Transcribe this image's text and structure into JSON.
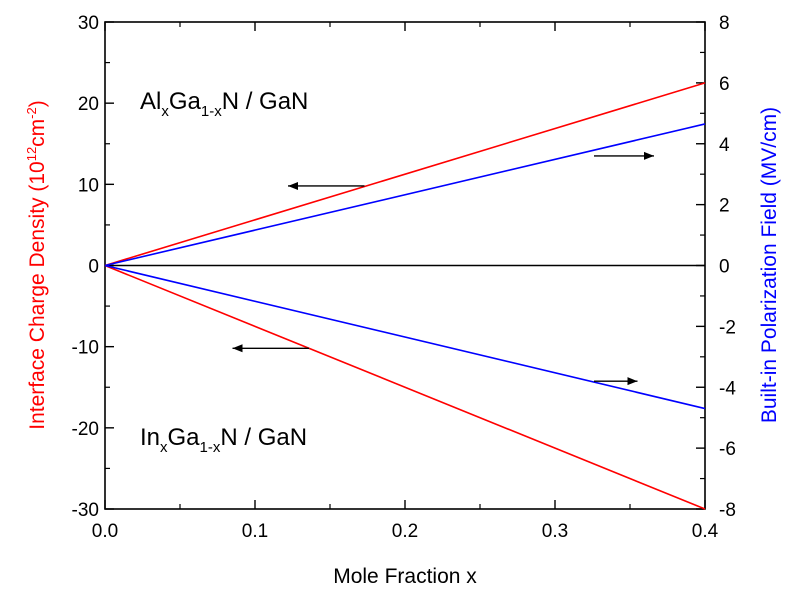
{
  "chart_data": {
    "type": "line",
    "xlabel": "Mole Fraction x",
    "ylabel_left": {
      "main": "Interface Charge Density (10",
      "sup1": "12",
      "mid": "cm",
      "sup2": "-2",
      "end": ")"
    },
    "ylabel_right": "Built-in Polarization Field (MV/cm)",
    "xlim": [
      0.0,
      0.4
    ],
    "ylim_left": [
      -30,
      30
    ],
    "ylim_right": [
      -8,
      8
    ],
    "x_ticks": [
      "0.0",
      "0.1",
      "0.2",
      "0.3",
      "0.4"
    ],
    "y_left_ticks": [
      "30",
      "20",
      "10",
      "0",
      "-10",
      "-20",
      "-30"
    ],
    "y_right_ticks": [
      "8",
      "6",
      "4",
      "2",
      "0",
      "-2",
      "-4",
      "-6",
      "-8"
    ],
    "series": [
      {
        "axis": "left",
        "color": "#ff0000",
        "x": [
          0.0,
          0.4
        ],
        "y": [
          0,
          22.5
        ]
      },
      {
        "axis": "right",
        "color": "#0000ff",
        "x": [
          0.0,
          0.4
        ],
        "y": [
          0,
          4.65
        ]
      },
      {
        "axis": "left",
        "color": "#ff0000",
        "x": [
          0.0,
          0.4
        ],
        "y": [
          0,
          -30.0
        ]
      },
      {
        "axis": "right",
        "color": "#0000ff",
        "x": [
          0.0,
          0.4
        ],
        "y": [
          0,
          -4.7
        ]
      }
    ],
    "zero_line_color": "#000000",
    "annotations": {
      "top": {
        "a": "Al",
        "s1": "x",
        "b": "Ga",
        "s2": "1-x",
        "c": "N / GaN"
      },
      "bottom": {
        "a": "In",
        "s1": "x",
        "b": "Ga",
        "s2": "1-x",
        "c": "N / GaN"
      }
    },
    "arrows": [
      {
        "direction": "left",
        "x_from": 0.173,
        "x_to": 0.122,
        "y": 9.8,
        "axis": "left"
      },
      {
        "direction": "right",
        "x_from": 0.326,
        "x_to": 0.366,
        "y": 3.6,
        "axis": "right"
      },
      {
        "direction": "left",
        "x_from": 0.136,
        "x_to": 0.085,
        "y": -10.2,
        "axis": "left"
      },
      {
        "direction": "right",
        "x_from": 0.326,
        "x_to": 0.355,
        "y": -3.8,
        "axis": "right"
      }
    ],
    "colors": {
      "left_axis_label": "#ff0000",
      "right_axis_label": "#0000ff"
    }
  }
}
